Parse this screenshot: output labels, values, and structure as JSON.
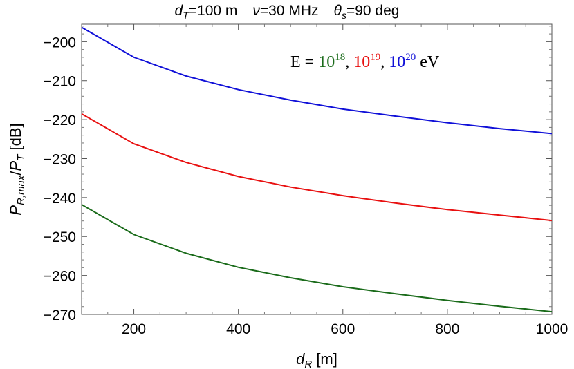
{
  "chart_data": {
    "type": "line",
    "title": {
      "dT_symbol": "d",
      "dT_sub": "T",
      "dT_value": "=100 m",
      "nu_symbol": "ν",
      "nu_value": "=30 MHz",
      "theta_symbol": "θ",
      "theta_sub": "s",
      "theta_value": "=90 deg"
    },
    "xlabel": {
      "symbol": "d",
      "sub": "R",
      "unit": " [m]"
    },
    "ylabel": {
      "p1": "P",
      "p1_sub": "R,max",
      "slash": "/",
      "p2": "P",
      "p2_sub": "T",
      "unit": "  [dB]"
    },
    "xlim": [
      100,
      1000
    ],
    "ylim": [
      -270,
      -195
    ],
    "xticks": [
      200,
      400,
      600,
      800,
      1000
    ],
    "yticks": [
      -270,
      -260,
      -250,
      -240,
      -230,
      -220,
      -210,
      -200
    ],
    "ytick_labels": [
      "−270",
      "−260",
      "−250",
      "−240",
      "−230",
      "−220",
      "−210",
      "−200"
    ],
    "legend": {
      "prefix": "E = ",
      "e1_base": "10",
      "e1_exp": "18",
      "sep1": ", ",
      "e2_base": "10",
      "e2_exp": "19",
      "sep2": ", ",
      "e3_base": "10",
      "e3_exp": "20",
      "suffix": " eV",
      "placement": "top-right"
    },
    "x": [
      100,
      200,
      300,
      400,
      500,
      600,
      700,
      800,
      900,
      1000
    ],
    "series": [
      {
        "name": "10^18",
        "color": "#1a6b1a",
        "values": [
          -241.8,
          -249.5,
          -254.3,
          -257.9,
          -260.6,
          -262.9,
          -264.7,
          -266.4,
          -267.9,
          -269.3
        ]
      },
      {
        "name": "10^19",
        "color": "#e81010",
        "values": [
          -218.5,
          -226.2,
          -231.0,
          -234.6,
          -237.3,
          -239.5,
          -241.4,
          -243.1,
          -244.5,
          -245.9
        ]
      },
      {
        "name": "10^20",
        "color": "#1010d8",
        "values": [
          -196.3,
          -204.0,
          -208.8,
          -212.3,
          -215.0,
          -217.3,
          -219.1,
          -220.8,
          -222.3,
          -223.6
        ]
      }
    ],
    "grid": false
  }
}
